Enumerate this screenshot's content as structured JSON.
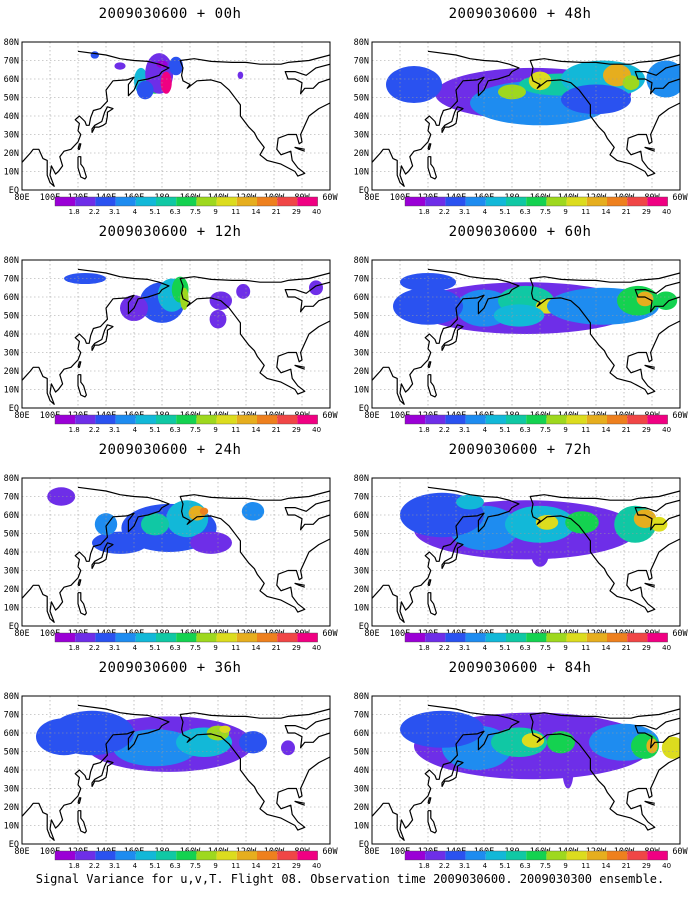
{
  "panels": [
    {
      "title": "2009030600 + 00h",
      "lead": 0
    },
    {
      "title": "2009030600 + 48h",
      "lead": 48
    },
    {
      "title": "2009030600 + 12h",
      "lead": 12
    },
    {
      "title": "2009030600 + 60h",
      "lead": 60
    },
    {
      "title": "2009030600 + 24h",
      "lead": 24
    },
    {
      "title": "2009030600 + 72h",
      "lead": 72
    },
    {
      "title": "2009030600 + 36h",
      "lead": 36
    },
    {
      "title": "2009030600 + 84h",
      "lead": 84
    }
  ],
  "lat_labels": [
    "80N",
    "70N",
    "60N",
    "50N",
    "40N",
    "30N",
    "20N",
    "10N",
    "EQ"
  ],
  "lon_labels": [
    "80E",
    "100E",
    "120E",
    "140E",
    "160E",
    "180",
    "160W",
    "140W",
    "120W",
    "100W",
    "80W",
    "60W"
  ],
  "colorbar": {
    "labels": [
      "1.8",
      "2.2",
      "3.1",
      "4",
      "5.1",
      "6.3",
      "7.5",
      "9",
      "11",
      "14",
      "21",
      "29",
      "40"
    ],
    "colors": [
      "#9a00d6",
      "#6e2ee8",
      "#2a52f0",
      "#1e8cf0",
      "#12b8d8",
      "#10c8a4",
      "#14d250",
      "#9ed81e",
      "#dcdc1e",
      "#e6ae1e",
      "#ee801e",
      "#f04646",
      "#f00082"
    ]
  },
  "caption": "Signal Variance for u,v,T. Flight 08. Observation time 2009030600. 2009030300 ensemble."
}
